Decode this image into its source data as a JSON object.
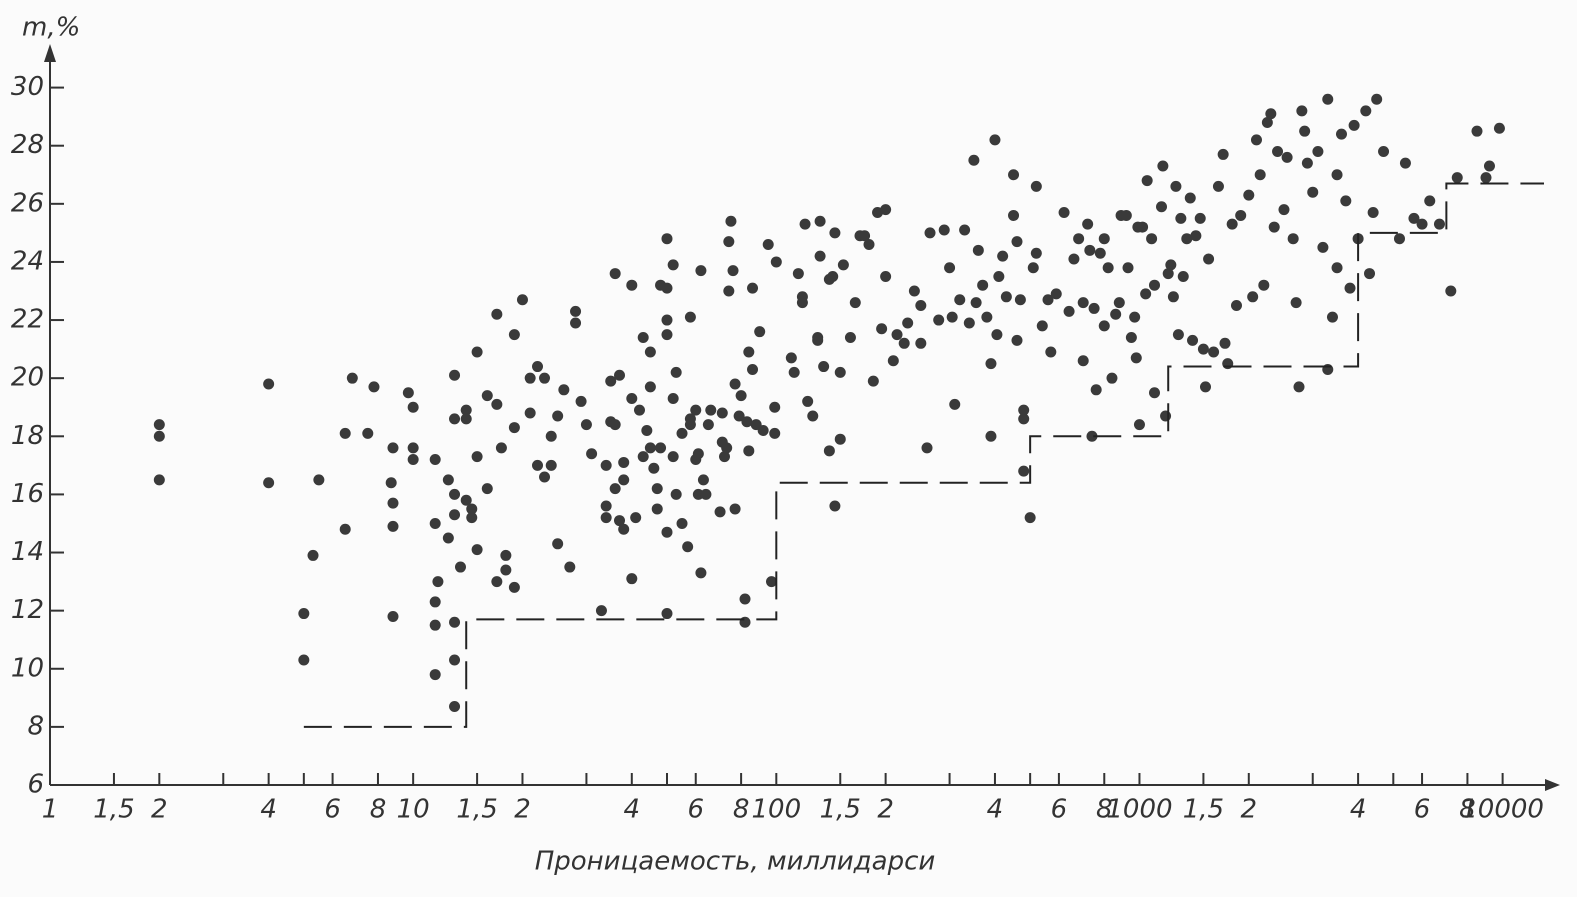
{
  "chart_data": {
    "type": "scatter",
    "xlabel": "Проницаемость, миллидарси",
    "ylabel": "m,%",
    "xscale": "log",
    "xlim": [
      1,
      13000
    ],
    "ylim": [
      6,
      31.5
    ],
    "xticks": [
      1,
      {
        "value": 1.5,
        "label": "1,5"
      },
      2,
      4,
      6,
      8,
      10,
      {
        "value": 15,
        "label": "1,5"
      },
      {
        "value": 20,
        "label": "2"
      },
      {
        "value": 40,
        "label": "4"
      },
      {
        "value": 60,
        "label": "6"
      },
      {
        "value": 80,
        "label": "8"
      },
      100,
      {
        "value": 150,
        "label": "1,5"
      },
      {
        "value": 200,
        "label": "2"
      },
      {
        "value": 400,
        "label": "4"
      },
      {
        "value": 600,
        "label": "6"
      },
      {
        "value": 800,
        "label": "8"
      },
      1000,
      {
        "value": 1500,
        "label": "1,5"
      },
      {
        "value": 2000,
        "label": "2"
      },
      {
        "value": 4000,
        "label": "4"
      },
      {
        "value": 6000,
        "label": "6"
      },
      {
        "value": 8000,
        "label": "8"
      },
      10000
    ],
    "xminorticks": [
      3,
      5,
      30,
      50,
      300,
      500,
      3000,
      5000
    ],
    "yticks": [
      6,
      8,
      10,
      12,
      14,
      16,
      18,
      20,
      22,
      24,
      26,
      28,
      30
    ],
    "series": [
      {
        "type": "scatter",
        "color": "#3a3a3a",
        "x": [
          2,
          2,
          2,
          4,
          4,
          5,
          5,
          5.5,
          5.3,
          6.5,
          6.5,
          6.8,
          7.5,
          7.8,
          8.7,
          8.8,
          8.8,
          8.8,
          8.8,
          9.7,
          10,
          10,
          10,
          11.5,
          11.5,
          11.5,
          11.7,
          11.5,
          11.5,
          12.5,
          12.5,
          13,
          13,
          13,
          13,
          13,
          13,
          13,
          13.5,
          14,
          14,
          14,
          14.5,
          14.5,
          15,
          15,
          15,
          16,
          16,
          17,
          17,
          17,
          17.5,
          18,
          18,
          19,
          19,
          19,
          20,
          21,
          21,
          22,
          22,
          23,
          23,
          24,
          24,
          25,
          25,
          26,
          27,
          28,
          28,
          29,
          30,
          31,
          33,
          34,
          34,
          34,
          35,
          35,
          36,
          36,
          36,
          37,
          37,
          38,
          38,
          38,
          40,
          40,
          40,
          41,
          42,
          43,
          43,
          44,
          45,
          45,
          45,
          46,
          47,
          47,
          48,
          48,
          50,
          50,
          50,
          50,
          50,
          50,
          52,
          52,
          52,
          53,
          53,
          55,
          55,
          57,
          58,
          58,
          58,
          60,
          60,
          61,
          61,
          62,
          62,
          63,
          64,
          65,
          66,
          70,
          71,
          71,
          72,
          73,
          74,
          74,
          75,
          76,
          77,
          77,
          79,
          80,
          82,
          82,
          83,
          84,
          84,
          86,
          86,
          88,
          90,
          92,
          95,
          97,
          99,
          99,
          100,
          110,
          112,
          115,
          118,
          118,
          120,
          122,
          126,
          130,
          130,
          132,
          132,
          135,
          140,
          140,
          143,
          145,
          145,
          150,
          150,
          153,
          160,
          165,
          170,
          175,
          180,
          185,
          190,
          195,
          200,
          200,
          210,
          215,
          225,
          230,
          240,
          250,
          260,
          250,
          265,
          280,
          290,
          300,
          305,
          310,
          320,
          330,
          340,
          350,
          355,
          360,
          370,
          380,
          390,
          390,
          400,
          405,
          410,
          420,
          430,
          450,
          450,
          460,
          460,
          470,
          480,
          480,
          480,
          500,
          510,
          520,
          520,
          540,
          560,
          570,
          590,
          620,
          640,
          660,
          680,
          700,
          700,
          720,
          730,
          740,
          750,
          760,
          780,
          800,
          800,
          820,
          840,
          860,
          880,
          890,
          920,
          930,
          950,
          970,
          980,
          990,
          1000,
          1020,
          1040,
          1050,
          1080,
          1100,
          1100,
          1150,
          1160,
          1180,
          1200,
          1220,
          1240,
          1260,
          1280,
          1300,
          1320,
          1350,
          1380,
          1400,
          1430,
          1470,
          1500,
          1520,
          1550,
          1600,
          1650,
          1700,
          1720,
          1750,
          1800,
          1850,
          1900,
          2000,
          2050,
          2100,
          2150,
          2200,
          2250,
          2300,
          2350,
          2400,
          2500,
          2550,
          2650,
          2700,
          2750,
          2800,
          2850,
          2900,
          3000,
          3100,
          3200,
          3300,
          3300,
          3400,
          3500,
          3500,
          3600,
          3700,
          3800,
          3900,
          4000,
          4200,
          4300,
          4400,
          4500,
          4700,
          5200,
          5400,
          5700,
          6000,
          6300,
          6700,
          7200,
          7500,
          8500,
          9000,
          9200,
          9800
        ],
        "values": [
          18,
          18.4,
          16.5,
          19.8,
          16.4,
          11.9,
          10.3,
          16.5,
          13.9,
          14.8,
          18.1,
          20,
          18.1,
          19.7,
          16.4,
          15.7,
          14.9,
          11.8,
          17.6,
          19.5,
          19,
          17.2,
          17.6,
          11.5,
          9.8,
          12.3,
          13,
          15,
          17.2,
          14.5,
          16.5,
          16,
          15.3,
          18.6,
          20.1,
          11.6,
          10.3,
          8.7,
          13.5,
          15.8,
          18.9,
          18.6,
          15.5,
          15.2,
          14.1,
          17.3,
          20.9,
          16.2,
          19.4,
          22.2,
          19.1,
          13,
          17.6,
          13.4,
          13.9,
          12.8,
          18.3,
          21.5,
          22.7,
          18.8,
          20,
          20.4,
          17,
          20,
          16.6,
          17,
          18,
          14.3,
          18.7,
          19.6,
          13.5,
          22.3,
          21.9,
          19.2,
          18.4,
          17.4,
          12,
          15.6,
          15.2,
          17,
          18.5,
          19.9,
          23.6,
          16.2,
          18.4,
          20.1,
          15.1,
          14.8,
          17.1,
          16.5,
          19.3,
          23.2,
          13.1,
          15.2,
          18.9,
          21.4,
          17.3,
          18.2,
          19.7,
          20.9,
          17.6,
          16.9,
          16.2,
          15.5,
          23.2,
          17.6,
          22,
          23.1,
          21.5,
          24.8,
          14.7,
          11.9,
          19.3,
          17.3,
          23.9,
          16,
          20.2,
          18.1,
          15,
          14.2,
          18.6,
          22.1,
          18.4,
          18.9,
          17.2,
          17.4,
          16,
          23.7,
          13.3,
          16.5,
          16,
          18.4,
          18.9,
          15.4,
          18.8,
          17.8,
          17.3,
          17.6,
          23,
          24.7,
          25.4,
          23.7,
          19.8,
          15.5,
          18.7,
          19.4,
          12.4,
          11.6,
          18.5,
          17.5,
          20.9,
          23.1,
          20.3,
          18.4,
          21.6,
          18.2,
          24.6,
          13,
          19,
          18.1,
          24,
          20.7,
          20.2,
          23.6,
          22.8,
          22.6,
          25.3,
          19.2,
          18.7,
          21.4,
          21.3,
          25.4,
          24.2,
          20.4,
          23.4,
          17.5,
          23.5,
          25,
          15.6,
          17.9,
          20.2,
          23.9,
          21.4,
          22.6,
          24.9,
          24.9,
          24.6,
          19.9,
          25.7,
          21.7,
          25.8,
          23.5,
          20.6,
          21.5,
          21.2,
          21.9,
          23,
          22.5,
          17.6,
          21.2,
          25,
          22,
          25.1,
          23.8,
          22.1,
          19.1,
          22.7,
          25.1,
          21.9,
          27.5,
          22.6,
          24.4,
          23.2,
          22.1,
          18,
          20.5,
          28.2,
          21.5,
          23.5,
          24.2,
          22.8,
          27,
          25.6,
          21.3,
          24.7,
          22.7,
          18.6,
          18.9,
          16.8,
          15.2,
          23.8,
          26.6,
          24.3,
          21.8,
          22.7,
          20.9,
          22.9,
          25.7,
          22.3,
          24.1,
          24.8,
          22.6,
          20.6,
          25.3,
          24.4,
          18,
          22.4,
          19.6,
          24.3,
          21.8,
          24.8,
          23.8,
          20,
          22.2,
          22.6,
          25.6,
          25.6,
          23.8,
          21.4,
          22.1,
          20.7,
          25.2,
          18.4,
          25.2,
          22.9,
          26.8,
          24.8,
          23.2,
          19.5,
          25.9,
          27.3,
          18.7,
          23.6,
          23.9,
          22.8,
          26.6,
          21.5,
          25.5,
          23.5,
          24.8,
          26.2,
          21.3,
          24.9,
          25.5,
          21,
          19.7,
          24.1,
          20.9,
          26.6,
          27.7,
          21.2,
          20.5,
          25.3,
          22.5,
          25.6,
          26.3,
          22.8,
          28.2,
          27,
          23.2,
          28.8,
          29.1,
          25.2,
          27.8,
          25.8,
          27.6,
          24.8,
          22.6,
          19.7,
          29.2,
          28.5,
          27.4,
          26.4,
          27.8,
          24.5,
          29.6,
          20.3,
          22.1,
          27,
          23.8,
          28.4,
          26.1,
          23.1,
          28.7,
          24.8,
          29.2,
          23.6,
          25.7,
          29.6,
          27.8,
          24.8,
          27.4,
          25.5,
          25.3,
          26.1,
          25.3,
          23,
          26.9,
          28.5,
          26.9,
          27.3,
          28.6
        ]
      },
      {
        "type": "line",
        "style": "dashed",
        "color": "#222222",
        "x": [
          5,
          14,
          14,
          100,
          100,
          500,
          500,
          1200,
          1200,
          4000,
          4000,
          7000,
          7000,
          13000
        ],
        "values": [
          8,
          8,
          11.7,
          11.7,
          16.4,
          16.4,
          18,
          18,
          20.4,
          20.4,
          25,
          25,
          26.7,
          26.7
        ]
      }
    ]
  }
}
